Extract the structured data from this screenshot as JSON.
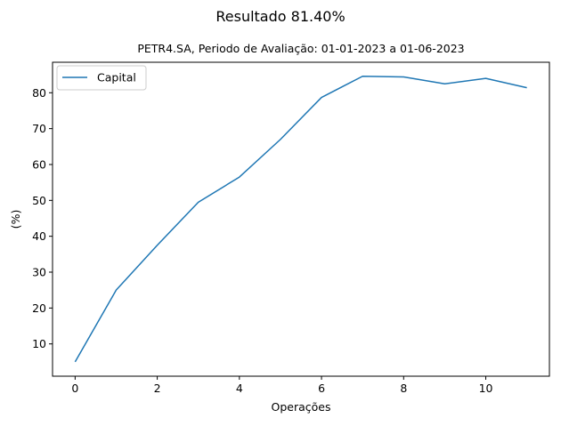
{
  "suptitle": "Resultado 81.40%",
  "chart_data": {
    "type": "line",
    "title": "PETR4.SA, Periodo de Avaliação: 01-01-2023 a 01-06-2023",
    "xlabel": "Operações",
    "ylabel": "(%)",
    "x": [
      0,
      1,
      2,
      3,
      4,
      5,
      6,
      7,
      8,
      9,
      10,
      11
    ],
    "series": [
      {
        "name": "Capital",
        "color": "#1f77b4",
        "values": [
          5.0,
          25.0,
          37.5,
          49.5,
          56.5,
          67.0,
          78.7,
          84.6,
          84.4,
          82.5,
          84.0,
          81.4
        ]
      }
    ],
    "xlim": [
      -0.55,
      11.55
    ],
    "ylim": [
      1.0,
      88.5
    ],
    "xticks": [
      0,
      2,
      4,
      6,
      8,
      10
    ],
    "yticks": [
      10,
      20,
      30,
      40,
      50,
      60,
      70,
      80
    ],
    "grid": false,
    "legend_position": "upper-left"
  }
}
